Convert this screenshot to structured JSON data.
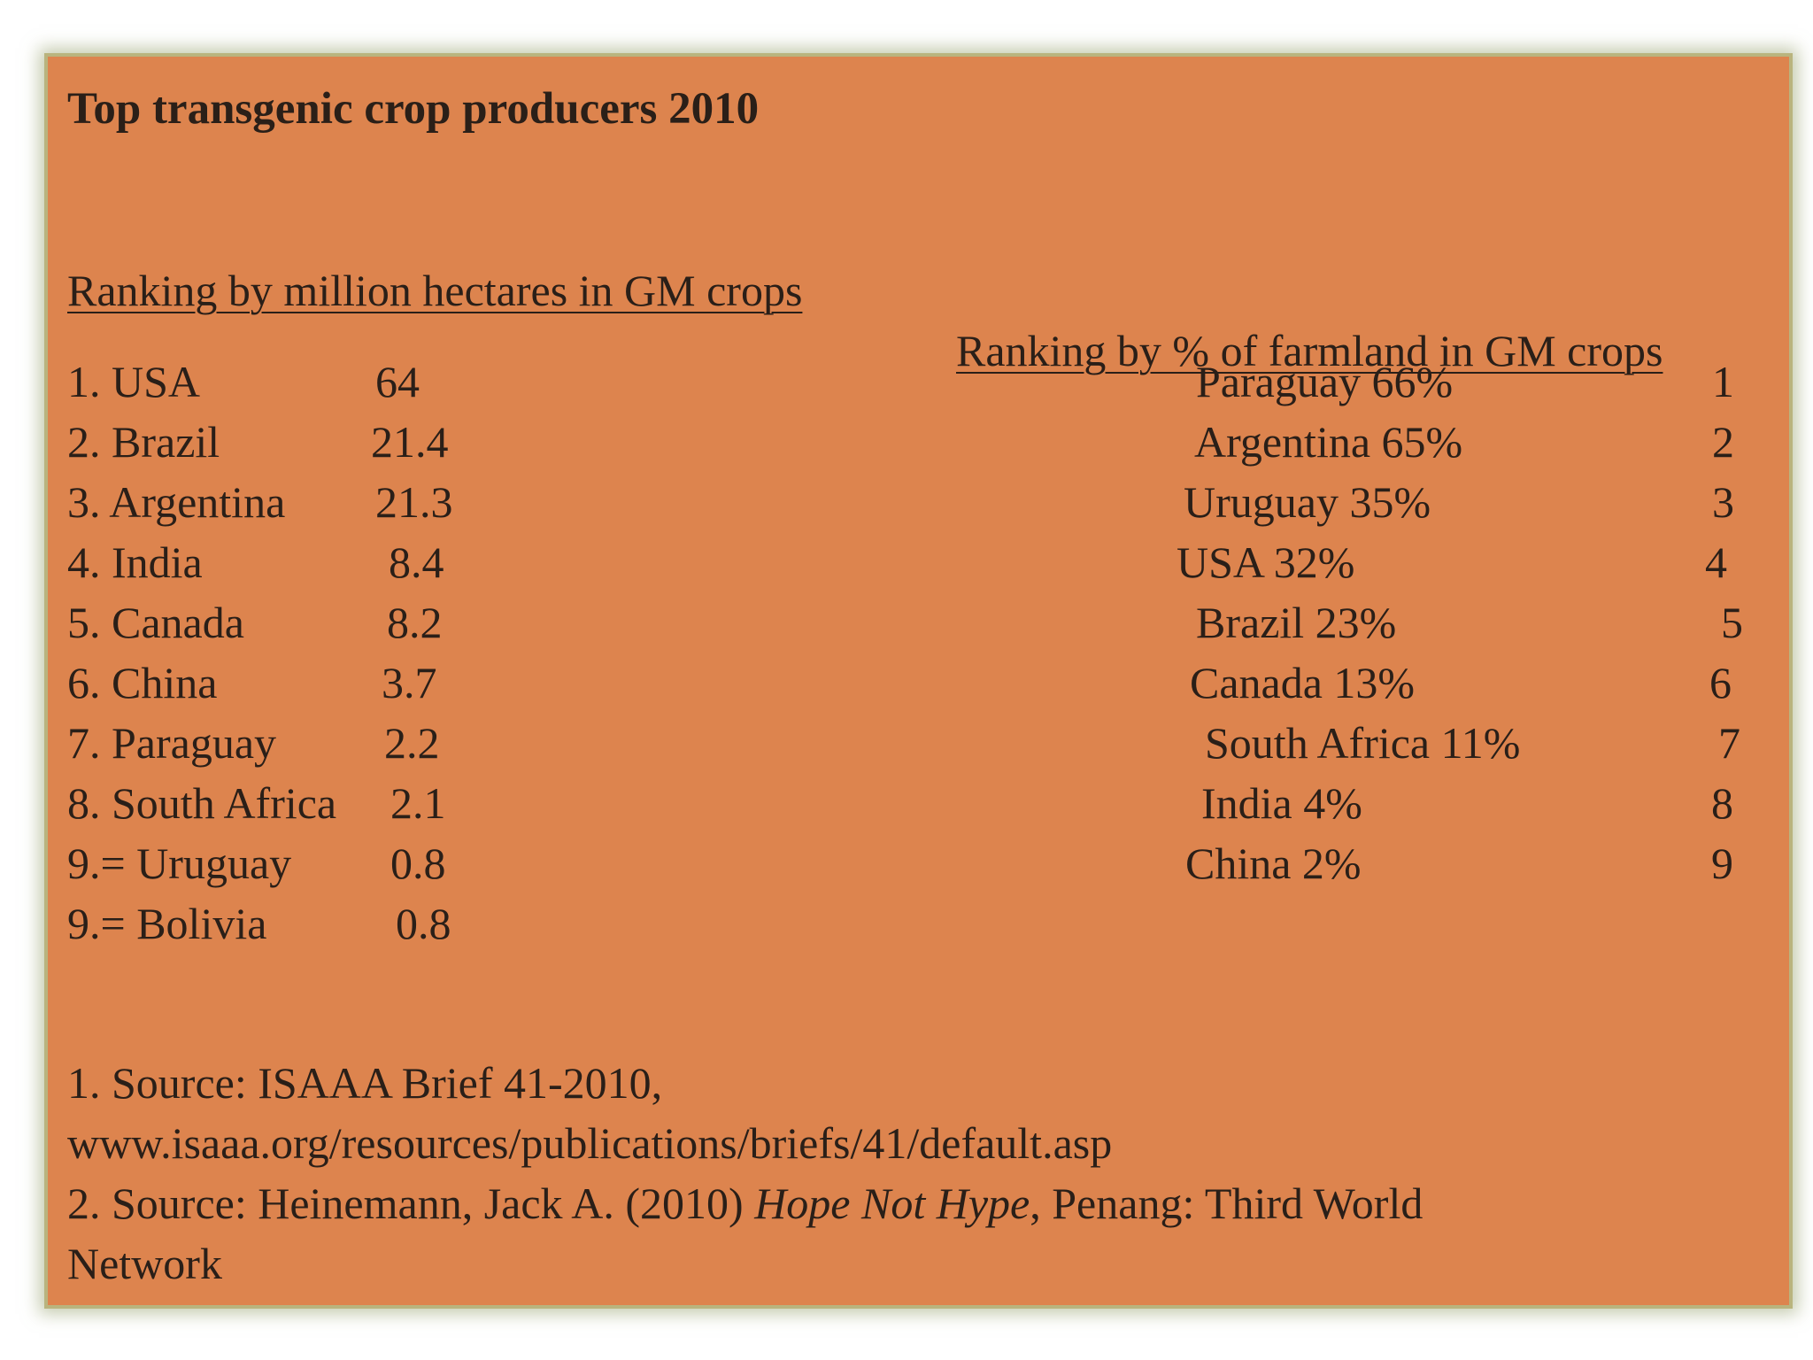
{
  "title": "Top transgenic crop producers 2010",
  "left_heading": "Ranking by million hectares in GM crops",
  "right_heading": "Ranking by % of farmland in GM crops",
  "hectares_ranking": [
    {
      "rank_country": "1. USA",
      "value": "64"
    },
    {
      "rank_country": "2. Brazil",
      "value": "21.4"
    },
    {
      "rank_country": "3. Argentina",
      "value": "21.3"
    },
    {
      "rank_country": "4. India",
      "value": "8.4"
    },
    {
      "rank_country": "5. Canada",
      "value": "8.2"
    },
    {
      "rank_country": "6. China",
      "value": "3.7"
    },
    {
      "rank_country": "7. Paraguay",
      "value": "2.2"
    },
    {
      "rank_country": "8. South Africa",
      "value": "2.1"
    },
    {
      "rank_country": "9.= Uruguay",
      "value": "0.8"
    },
    {
      "rank_country": "9.= Bolivia",
      "value": "0.8"
    }
  ],
  "farmland_ranking": [
    {
      "country_pct": "Paraguay 66%",
      "rank": "1"
    },
    {
      "country_pct": "Argentina 65%",
      "rank": "2"
    },
    {
      "country_pct": "Uruguay 35%",
      "rank": "3"
    },
    {
      "country_pct": "USA 32%",
      "rank": "4"
    },
    {
      "country_pct": "Brazil 23%",
      "rank": "5"
    },
    {
      "country_pct": "Canada 13%",
      "rank": "6"
    },
    {
      "country_pct": "South Africa 11%",
      "rank": "7"
    },
    {
      "country_pct": "India 4%",
      "rank": "8"
    },
    {
      "country_pct": "China 2%",
      "rank": "9"
    }
  ],
  "sources": {
    "line1": "1. Source: ISAAA Brief 41-2010,",
    "line2": "www.isaaa.org/resources/publications/briefs/41/default.asp",
    "line3_prefix": "2. Source: Heinemann, Jack A. (2010) ",
    "line3_italic": "Hope Not Hype",
    "line3_suffix": ", Penang: Third World",
    "line4": "Network"
  }
}
